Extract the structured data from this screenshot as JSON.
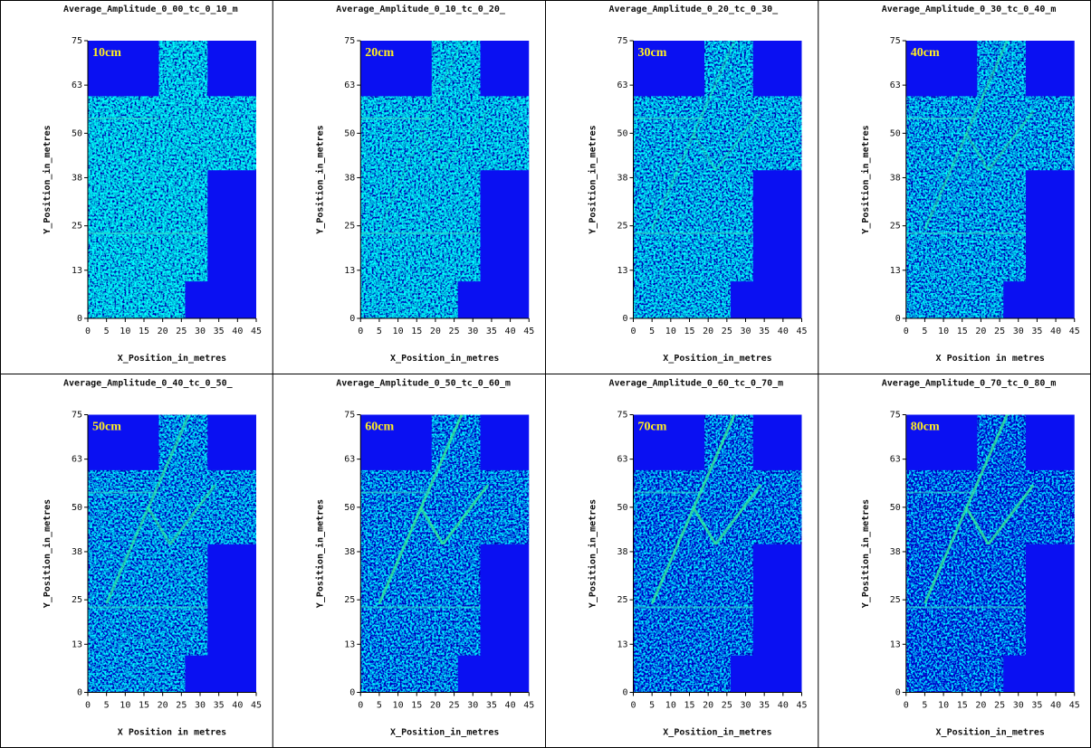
{
  "chart_data": [
    {
      "type": "image",
      "title": "Average_Amplitude_0_00_tc_0_10_m",
      "label": "10cm",
      "xlabel": "X_Position_in_metres",
      "ylabel": "Y_Position_in_metres",
      "xlim": [
        0,
        45
      ],
      "ylim": [
        0,
        75
      ],
      "xticks": [
        0,
        5,
        10,
        15,
        20,
        25,
        30,
        35,
        40,
        45
      ],
      "yticks": [
        0,
        13,
        25,
        38,
        50,
        63,
        75
      ]
    },
    {
      "type": "image",
      "title": "Average_Amplitude_0_10_tc_0_20_",
      "label": "20cm",
      "xlabel": "X_Position_in_metres",
      "ylabel": "Y_Position_in_metres",
      "xlim": [
        0,
        45
      ],
      "ylim": [
        0,
        75
      ],
      "xticks": [
        0,
        5,
        10,
        15,
        20,
        25,
        30,
        35,
        40,
        45
      ],
      "yticks": [
        0,
        13,
        25,
        38,
        50,
        63,
        75
      ]
    },
    {
      "type": "image",
      "title": "Average_Amplitude_0_20_tc_0_30_",
      "label": "30cm",
      "xlabel": "X_Position_in_metres",
      "ylabel": "Y_Position_in_metres",
      "xlim": [
        0,
        45
      ],
      "ylim": [
        0,
        75
      ],
      "xticks": [
        0,
        5,
        10,
        15,
        20,
        25,
        30,
        35,
        40,
        45
      ],
      "yticks": [
        0,
        13,
        25,
        38,
        50,
        63,
        75
      ]
    },
    {
      "type": "image",
      "title": "Average_Amplitude_0_30_tc_0_40_m",
      "label": "40cm",
      "xlabel": "X Position in metres",
      "ylabel": "Y_Position_in_metres",
      "xlim": [
        0,
        45
      ],
      "ylim": [
        0,
        75
      ],
      "xticks": [
        0,
        5,
        10,
        15,
        20,
        25,
        30,
        35,
        40,
        45
      ],
      "yticks": [
        0,
        13,
        25,
        38,
        50,
        63,
        75
      ]
    },
    {
      "type": "image",
      "title": "Average_Amplitude_0_40_tc_0_50_",
      "label": "50cm",
      "xlabel": "X Position in metres",
      "ylabel": "Y_Position_in_metres",
      "xlim": [
        0,
        45
      ],
      "ylim": [
        0,
        75
      ],
      "xticks": [
        0,
        5,
        10,
        15,
        20,
        25,
        30,
        35,
        40,
        45
      ],
      "yticks": [
        0,
        13,
        25,
        38,
        50,
        63,
        75
      ]
    },
    {
      "type": "image",
      "title": "Average_Amplitude_0_50_tc_0_60_m",
      "label": "60cm",
      "xlabel": "X_Position_in_metres",
      "ylabel": "Y_Position_in_metres",
      "xlim": [
        0,
        45
      ],
      "ylim": [
        0,
        75
      ],
      "xticks": [
        0,
        5,
        10,
        15,
        20,
        25,
        30,
        35,
        40,
        45
      ],
      "yticks": [
        0,
        13,
        25,
        38,
        50,
        63,
        75
      ]
    },
    {
      "type": "image",
      "title": "Average_Amplitude_0_60_tc_0_70_m",
      "label": "70cm",
      "xlabel": "X_Position_in_metres",
      "ylabel": "Y_Position_in_metres",
      "xlim": [
        0,
        45
      ],
      "ylim": [
        0,
        75
      ],
      "xticks": [
        0,
        5,
        10,
        15,
        20,
        25,
        30,
        35,
        40,
        45
      ],
      "yticks": [
        0,
        13,
        25,
        38,
        50,
        63,
        75
      ]
    },
    {
      "type": "image",
      "title": "Average_Amplitude_0_70_tc_0_80_m",
      "label": "80cm",
      "xlabel": "X_Position_in_metres",
      "ylabel": "Y_Position_in_metres",
      "xlim": [
        0,
        45
      ],
      "ylim": [
        0,
        75
      ],
      "xticks": [
        0,
        5,
        10,
        15,
        20,
        25,
        30,
        35,
        40,
        45
      ],
      "yticks": [
        0,
        13,
        25,
        38,
        50,
        63,
        75
      ]
    }
  ]
}
